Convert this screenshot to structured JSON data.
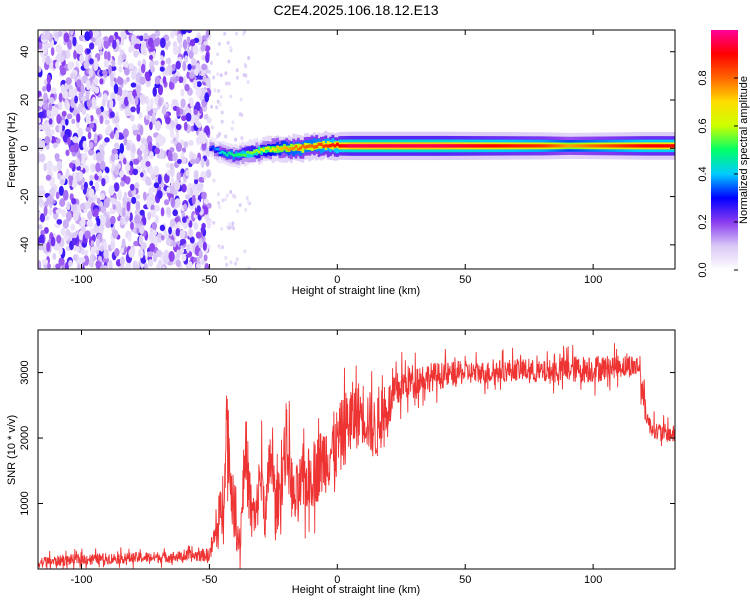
{
  "figure": {
    "title": "C2E4.2025.106.18.12.E13"
  },
  "chart_data": [
    {
      "type": "heatmap",
      "xlabel": "Height of straight line (km)",
      "ylabel": "Frequency (Hz)",
      "xlim": [
        -117,
        132
      ],
      "ylim": [
        -50,
        49
      ],
      "xticks": [
        -100,
        -50,
        0,
        50,
        100
      ],
      "yticks": [
        -40,
        -20,
        0,
        20,
        40
      ],
      "x_tick_labels": [
        "-100",
        "-50",
        "0",
        "50",
        "100"
      ],
      "y_tick_labels": [
        "-40",
        "-20",
        "0",
        "20",
        "40"
      ],
      "noise_region_x": [
        -117,
        -50
      ],
      "signal_ridge": {
        "x": [
          -50,
          -45,
          -40,
          -35,
          -30,
          -25,
          -20,
          -15,
          -10,
          -5,
          0,
          5,
          10,
          20,
          40,
          60,
          80,
          90,
          100,
          110,
          120,
          132
        ],
        "frequency": [
          0,
          -2,
          -3,
          -2,
          -1,
          0,
          0,
          0,
          1,
          1,
          1,
          1,
          1,
          1,
          1,
          1,
          1,
          1,
          1,
          1,
          1,
          1
        ],
        "amplitude": [
          0.3,
          0.45,
          0.5,
          0.55,
          0.6,
          0.7,
          0.75,
          0.8,
          0.8,
          0.85,
          0.9,
          0.95,
          0.95,
          0.95,
          0.95,
          0.9,
          0.85,
          0.75,
          0.8,
          0.85,
          0.9,
          0.9
        ]
      },
      "colorbar": {
        "label": "Normalized spectral amplitude",
        "range": [
          0,
          1
        ],
        "ticks": [
          0.0,
          0.2,
          0.4,
          0.6,
          0.8
        ],
        "tick_labels": [
          "0.0",
          "0.2",
          "0.4",
          "0.6",
          "0.8"
        ],
        "colors": [
          "#ffffff",
          "#d9c8f5",
          "#8a3cf0",
          "#0000ff",
          "#00ccff",
          "#00ff66",
          "#ccff00",
          "#ffdd00",
          "#ff6600",
          "#ff0000",
          "#ff0099"
        ]
      }
    },
    {
      "type": "line",
      "xlabel": "Height of straight line (km)",
      "ylabel": "SNR (10 * v/v)",
      "xlim": [
        -117,
        132
      ],
      "ylim": [
        0,
        3650
      ],
      "xticks": [
        -100,
        -50,
        0,
        50,
        100
      ],
      "yticks": [
        1000,
        2000,
        3000
      ],
      "x_tick_labels": [
        "-100",
        "-50",
        "0",
        "50",
        "100"
      ],
      "y_tick_labels": [
        "1000",
        "2000",
        "3000"
      ],
      "color": "#ee3333",
      "series": [
        {
          "x": [
            -117,
            -100,
            -80,
            -60,
            -50,
            -47,
            -45,
            -43,
            -42,
            -40,
            -38,
            -36,
            -34,
            -32,
            -30,
            -28,
            -26,
            -24,
            -22,
            -20,
            -17,
            -14,
            -10,
            -5,
            0,
            5,
            10,
            15,
            20,
            25,
            30,
            40,
            50,
            60,
            70,
            80,
            90,
            100,
            110,
            118,
            120,
            122,
            125,
            132
          ],
          "y": [
            100,
            150,
            170,
            190,
            220,
            600,
            900,
            2400,
            1500,
            700,
            400,
            1900,
            1000,
            700,
            1500,
            800,
            1800,
            900,
            1300,
            2000,
            1000,
            1300,
            1400,
            1700,
            1900,
            2300,
            2400,
            2100,
            2500,
            2800,
            2900,
            2950,
            3000,
            3000,
            3050,
            3000,
            3050,
            3050,
            3100,
            3100,
            2500,
            2200,
            2100,
            2050
          ],
          "spread": [
            120,
            120,
            120,
            120,
            150,
            500,
            700,
            900,
            800,
            500,
            400,
            900,
            700,
            500,
            800,
            600,
            800,
            600,
            700,
            800,
            700,
            700,
            700,
            800,
            800,
            800,
            700,
            700,
            500,
            400,
            350,
            300,
            250,
            250,
            250,
            250,
            300,
            300,
            250,
            250,
            300,
            200,
            200,
            200
          ]
        }
      ]
    }
  ]
}
